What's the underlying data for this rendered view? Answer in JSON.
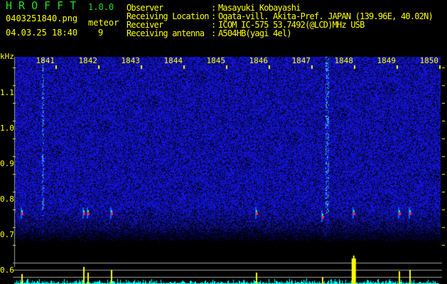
{
  "header": {
    "app_title": "H R O F F T",
    "version": "1.0.0",
    "filename": "0403251840.png",
    "datetime": "04.03.25 18:40",
    "meteor_label": "meteor",
    "meteor_count": "9"
  },
  "info": [
    {
      "label": "Observer",
      "value": "Masayuki Kobayashi"
    },
    {
      "label": "Receiving Location",
      "value": "Ogata-vill. Akita-Pref. JAPAN (139.96E, 40.02N)"
    },
    {
      "label": "Receiver",
      "value": "ICOM IC-575 53.7492(@LCD)MHz USB"
    },
    {
      "label": "Receiving antenna",
      "value": "A504HB(yagi 4el)"
    }
  ],
  "chart_data": {
    "type": "heatmap",
    "ylabel": "kHz",
    "y_ticks": [
      "1.1",
      "1.0",
      "0.9",
      "0.8",
      "0.7",
      "0.6"
    ],
    "ylim": [
      0.58,
      1.16
    ],
    "x_ticks": [
      "1841",
      "1842",
      "1843",
      "1844",
      "1845",
      "1846",
      "1847",
      "1848",
      "1849",
      "1850"
    ],
    "xlim_minutes": [
      1840,
      1850
    ],
    "meteor_echoes": [
      {
        "time": 1840.2,
        "freq_khz": 0.76
      },
      {
        "time": 1841.65,
        "freq_khz": 0.76
      },
      {
        "time": 1841.75,
        "freq_khz": 0.76
      },
      {
        "time": 1842.3,
        "freq_khz": 0.76
      },
      {
        "time": 1845.7,
        "freq_khz": 0.76
      },
      {
        "time": 1847.25,
        "freq_khz": 0.75
      },
      {
        "time": 1847.98,
        "freq_khz": 0.76
      },
      {
        "time": 1849.05,
        "freq_khz": 0.76
      },
      {
        "time": 1849.3,
        "freq_khz": 0.76
      }
    ],
    "colors": {
      "background": "#000000",
      "noise": "#1a1aff",
      "echo": "#ff2060",
      "histogram": "#00ffff",
      "detection": "#ffff00",
      "threshold": "#a0a0a0"
    }
  }
}
